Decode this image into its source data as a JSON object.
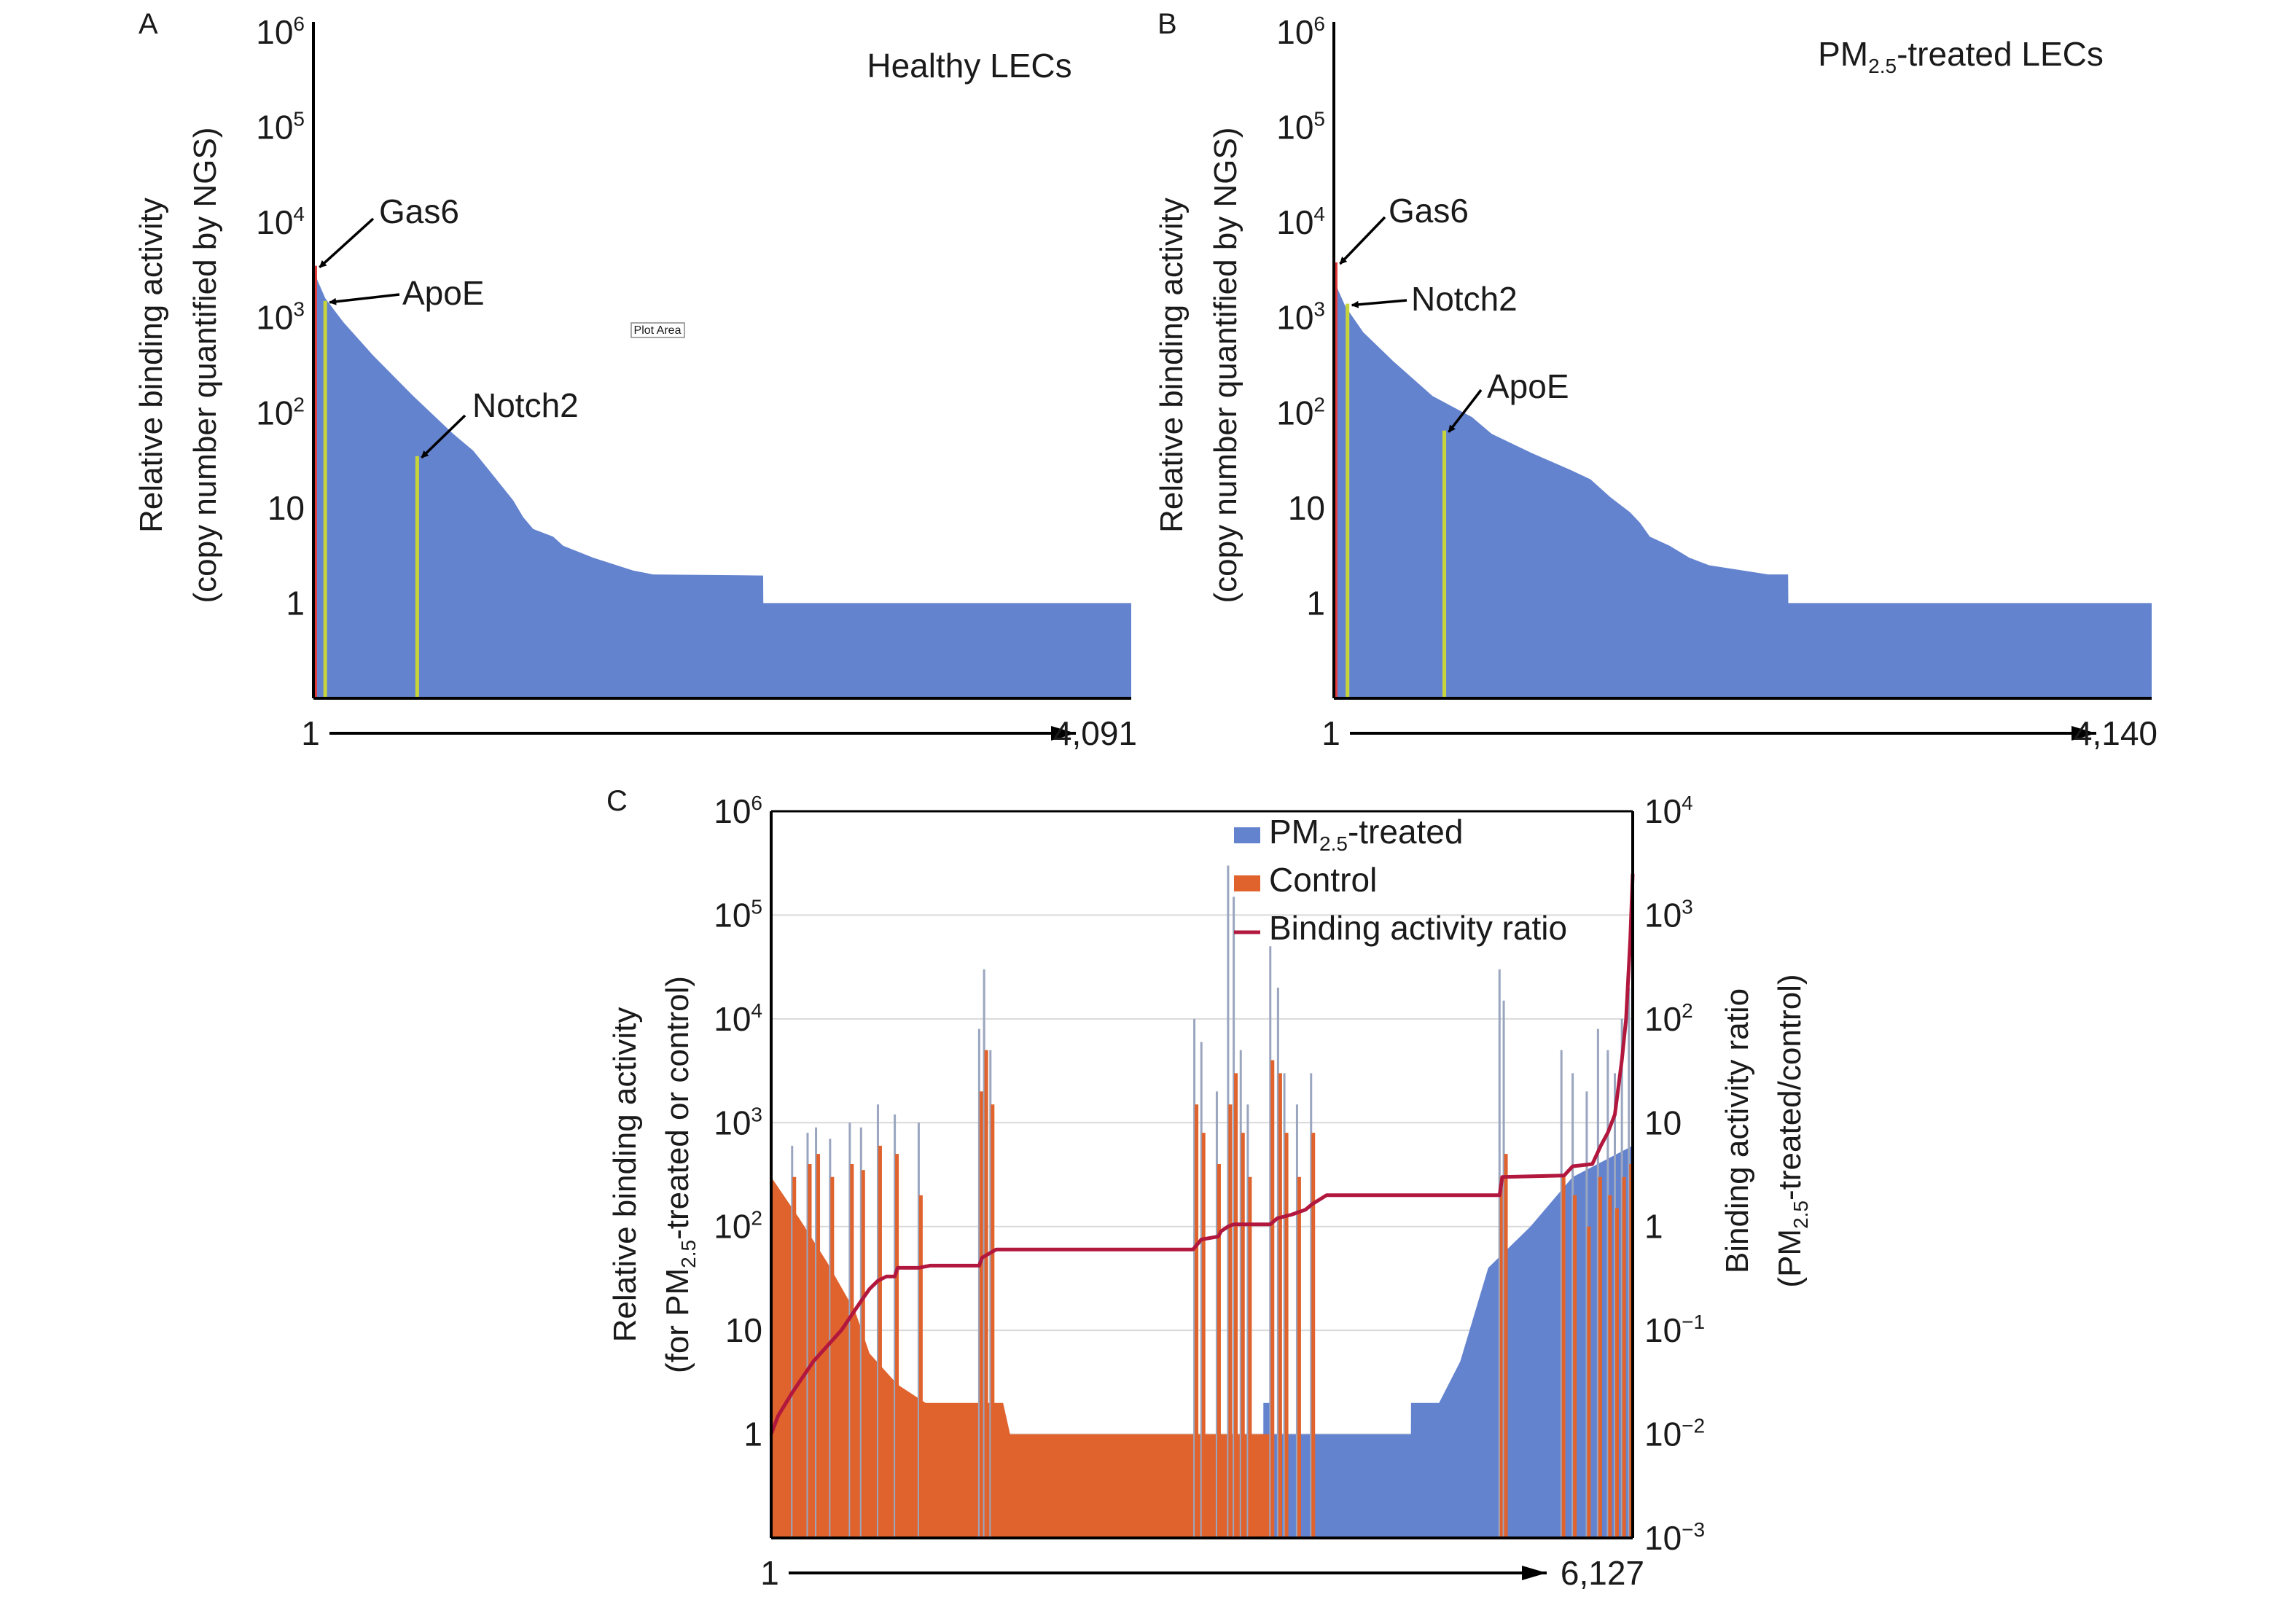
{
  "colors": {
    "pm25": "#6483cf",
    "control": "#e0622d",
    "ratio": "#b2173d",
    "gas6": "#e23b3b",
    "marker": "#c8d53a",
    "grid": "#d9d9d9",
    "axis": "#000000"
  },
  "chart_data": [
    {
      "panel": "A",
      "type": "bar",
      "title": "Healthy LECs",
      "ylabel_line1": "Relative binding activity",
      "ylabel_line2": "(copy number quantified by NGS)",
      "yscale": "log",
      "ylim": [
        0.1,
        1000000
      ],
      "yticks": [
        {
          "v": 1000000,
          "base": "10",
          "exp": "6"
        },
        {
          "v": 100000,
          "base": "10",
          "exp": "5"
        },
        {
          "v": 10000,
          "base": "10",
          "exp": "4"
        },
        {
          "v": 1000,
          "base": "10",
          "exp": "3"
        },
        {
          "v": 100,
          "base": "10",
          "exp": "2"
        },
        {
          "v": 10,
          "base": "10",
          "exp": ""
        },
        {
          "v": 1,
          "base": "1",
          "exp": ""
        }
      ],
      "x_start_label": "1",
      "x_end_label": "4,091",
      "xlim": [
        1,
        4091
      ],
      "grid": false,
      "profile": [
        [
          1,
          4000
        ],
        [
          20,
          2500
        ],
        [
          60,
          1600
        ],
        [
          150,
          900
        ],
        [
          300,
          400
        ],
        [
          500,
          150
        ],
        [
          700,
          60
        ],
        [
          800,
          40
        ],
        [
          900,
          22
        ],
        [
          1000,
          12
        ],
        [
          1050,
          8
        ],
        [
          1100,
          6
        ],
        [
          1200,
          5
        ],
        [
          1250,
          4
        ],
        [
          1400,
          3
        ],
        [
          1600,
          2.2
        ],
        [
          1700,
          2
        ],
        [
          2250,
          1.95
        ],
        [
          2251,
          1
        ],
        [
          4091,
          1
        ]
      ],
      "markers": [
        {
          "label": "Gas6",
          "x": 10,
          "y": 3500,
          "color": "gas6"
        },
        {
          "label": "ApoE",
          "x": 60,
          "y": 1500,
          "color": "marker"
        },
        {
          "label": "Notch2",
          "x": 520,
          "y": 35,
          "color": "marker"
        }
      ],
      "plot_area_label": "Plot Area"
    },
    {
      "panel": "B",
      "type": "bar",
      "title_main": "PM",
      "title_sub": "2.5",
      "title_rest": "-treated LECs",
      "ylabel_line1": "Relative binding activity",
      "ylabel_line2": "(copy number quantified by NGS)",
      "yscale": "log",
      "ylim": [
        0.1,
        1000000
      ],
      "yticks": [
        {
          "v": 1000000,
          "base": "10",
          "exp": "6"
        },
        {
          "v": 100000,
          "base": "10",
          "exp": "5"
        },
        {
          "v": 10000,
          "base": "10",
          "exp": "4"
        },
        {
          "v": 1000,
          "base": "10",
          "exp": "3"
        },
        {
          "v": 100,
          "base": "10",
          "exp": "2"
        },
        {
          "v": 10,
          "base": "10",
          "exp": ""
        },
        {
          "v": 1,
          "base": "1",
          "exp": ""
        }
      ],
      "x_start_label": "1",
      "x_end_label": "4,140",
      "xlim": [
        1,
        4140
      ],
      "grid": false,
      "profile": [
        [
          1,
          4000
        ],
        [
          20,
          2000
        ],
        [
          60,
          1300
        ],
        [
          150,
          700
        ],
        [
          300,
          350
        ],
        [
          500,
          150
        ],
        [
          700,
          90
        ],
        [
          800,
          60
        ],
        [
          1000,
          38
        ],
        [
          1200,
          25
        ],
        [
          1300,
          20
        ],
        [
          1400,
          13
        ],
        [
          1500,
          9
        ],
        [
          1550,
          7
        ],
        [
          1600,
          5
        ],
        [
          1700,
          4
        ],
        [
          1800,
          3
        ],
        [
          1900,
          2.5
        ],
        [
          2200,
          2
        ],
        [
          2300,
          2
        ],
        [
          2301,
          1
        ],
        [
          4140,
          1
        ]
      ],
      "markers": [
        {
          "label": "Gas6",
          "x": 10,
          "y": 3800,
          "color": "gas6"
        },
        {
          "label": "Notch2",
          "x": 70,
          "y": 1400,
          "color": "marker"
        },
        {
          "label": "ApoE",
          "x": 560,
          "y": 65,
          "color": "marker"
        }
      ]
    },
    {
      "panel": "C",
      "type": "bar",
      "ylabel_line1": "Relative binding activity",
      "ylabel_line2_pre": "(for PM",
      "ylabel_line2_sub": "2.5",
      "ylabel_line2_post": "-treated or control)",
      "y2label_line1": "Binding activity ratio",
      "y2label_line2_pre": "(PM",
      "y2label_line2_sub": "2.5",
      "y2label_line2_post": "-treated/control)",
      "yscale": "log",
      "ylim": [
        0.1,
        1000000
      ],
      "y2scale": "log",
      "y2lim": [
        0.001,
        10000
      ],
      "yticks": [
        {
          "v": 1000000,
          "base": "10",
          "exp": "6"
        },
        {
          "v": 100000,
          "base": "10",
          "exp": "5"
        },
        {
          "v": 10000,
          "base": "10",
          "exp": "4"
        },
        {
          "v": 1000,
          "base": "10",
          "exp": "3"
        },
        {
          "v": 100,
          "base": "10",
          "exp": "2"
        },
        {
          "v": 10,
          "base": "10",
          "exp": ""
        },
        {
          "v": 1,
          "base": "1",
          "exp": ""
        }
      ],
      "y2ticks": [
        {
          "v": 10000,
          "base": "10",
          "exp": "4"
        },
        {
          "v": 1000,
          "base": "10",
          "exp": "3"
        },
        {
          "v": 100,
          "base": "10",
          "exp": "2"
        },
        {
          "v": 10,
          "base": "10",
          "exp": ""
        },
        {
          "v": 1,
          "base": "1",
          "exp": ""
        },
        {
          "v": 0.1,
          "base": "10",
          "exp": "−1"
        },
        {
          "v": 0.01,
          "base": "10",
          "exp": "−2"
        },
        {
          "v": 0.001,
          "base": "10",
          "exp": "−3"
        }
      ],
      "x_start_label": "1",
      "x_end_label": "6,127",
      "xlim": [
        1,
        6127
      ],
      "grid": true,
      "legend": [
        {
          "key": "pm25",
          "pre": "PM",
          "sub": "2.5",
          "post": "-treated",
          "kind": "box"
        },
        {
          "key": "control",
          "pre": "Control",
          "sub": "",
          "post": "",
          "kind": "box"
        },
        {
          "key": "ratio",
          "pre": "Binding activity ratio",
          "sub": "",
          "post": "",
          "kind": "line"
        }
      ],
      "legend_position": "top-right",
      "control_profile": [
        [
          1,
          300
        ],
        [
          200,
          120
        ],
        [
          400,
          45
        ],
        [
          600,
          15
        ],
        [
          700,
          6
        ],
        [
          900,
          3
        ],
        [
          1100,
          2
        ],
        [
          1650,
          2
        ],
        [
          1700,
          1
        ],
        [
          3570,
          1
        ],
        [
          3571,
          0.1
        ],
        [
          6127,
          0.1
        ]
      ],
      "pm25_profile": [
        [
          1,
          0.1
        ],
        [
          3500,
          0.1
        ],
        [
          3501,
          2
        ],
        [
          3570,
          2
        ],
        [
          3571,
          1
        ],
        [
          4550,
          1
        ],
        [
          4551,
          2
        ],
        [
          4750,
          2
        ],
        [
          4900,
          5
        ],
        [
          5100,
          40
        ],
        [
          5400,
          100
        ],
        [
          5700,
          300
        ],
        [
          6127,
          600
        ]
      ],
      "spikes": [
        {
          "x": 150,
          "pm": 600,
          "ctrl": 300
        },
        {
          "x": 260,
          "pm": 800,
          "ctrl": 400
        },
        {
          "x": 320,
          "pm": 900,
          "ctrl": 500
        },
        {
          "x": 420,
          "pm": 700,
          "ctrl": 300
        },
        {
          "x": 560,
          "pm": 1000,
          "ctrl": 400
        },
        {
          "x": 640,
          "pm": 900,
          "ctrl": 350
        },
        {
          "x": 760,
          "pm": 1500,
          "ctrl": 600
        },
        {
          "x": 880,
          "pm": 1200,
          "ctrl": 500
        },
        {
          "x": 1050,
          "pm": 1000,
          "ctrl": 200
        },
        {
          "x": 1480,
          "pm": 8000,
          "ctrl": 2000
        },
        {
          "x": 1515,
          "pm": 30000,
          "ctrl": 5000
        },
        {
          "x": 1560,
          "pm": 5000,
          "ctrl": 1500
        },
        {
          "x": 3010,
          "pm": 10000,
          "ctrl": 1500
        },
        {
          "x": 3060,
          "pm": 6000,
          "ctrl": 800
        },
        {
          "x": 3170,
          "pm": 2000,
          "ctrl": 400
        },
        {
          "x": 3250,
          "pm": 300000,
          "ctrl": 1500
        },
        {
          "x": 3290,
          "pm": 150000,
          "ctrl": 3000
        },
        {
          "x": 3340,
          "pm": 5000,
          "ctrl": 800
        },
        {
          "x": 3390,
          "pm": 1500,
          "ctrl": 300
        },
        {
          "x": 3550,
          "pm": 50000,
          "ctrl": 4000
        },
        {
          "x": 3605,
          "pm": 20000,
          "ctrl": 3000
        },
        {
          "x": 3650,
          "pm": 3000,
          "ctrl": 800
        },
        {
          "x": 3740,
          "pm": 1500,
          "ctrl": 300
        },
        {
          "x": 3840,
          "pm": 3000,
          "ctrl": 800
        },
        {
          "x": 5180,
          "pm": 30000,
          "ctrl": 300
        },
        {
          "x": 5210,
          "pm": 15000,
          "ctrl": 500
        },
        {
          "x": 5620,
          "pm": 5000,
          "ctrl": 300
        },
        {
          "x": 5700,
          "pm": 3000,
          "ctrl": 200
        },
        {
          "x": 5800,
          "pm": 2000,
          "ctrl": 100
        },
        {
          "x": 5880,
          "pm": 8000,
          "ctrl": 300
        },
        {
          "x": 5950,
          "pm": 5000,
          "ctrl": 200
        },
        {
          "x": 6000,
          "pm": 3000,
          "ctrl": 150
        },
        {
          "x": 6050,
          "pm": 10000,
          "ctrl": 300
        },
        {
          "x": 6100,
          "pm": 20000,
          "ctrl": 400
        }
      ],
      "ratio_line": [
        [
          1,
          0.01
        ],
        [
          50,
          0.015
        ],
        [
          150,
          0.025
        ],
        [
          300,
          0.05
        ],
        [
          500,
          0.1
        ],
        [
          650,
          0.2
        ],
        [
          700,
          0.25
        ],
        [
          760,
          0.3
        ],
        [
          820,
          0.33
        ],
        [
          880,
          0.33
        ],
        [
          900,
          0.4
        ],
        [
          1050,
          0.4
        ],
        [
          1130,
          0.42
        ],
        [
          1480,
          0.42
        ],
        [
          1500,
          0.5
        ],
        [
          1600,
          0.6
        ],
        [
          3000,
          0.6
        ],
        [
          3060,
          0.75
        ],
        [
          3180,
          0.8
        ],
        [
          3200,
          0.9
        ],
        [
          3250,
          1.0
        ],
        [
          3290,
          1.05
        ],
        [
          3550,
          1.05
        ],
        [
          3600,
          1.2
        ],
        [
          3700,
          1.3
        ],
        [
          3800,
          1.45
        ],
        [
          3850,
          1.65
        ],
        [
          3950,
          2
        ],
        [
          5180,
          2
        ],
        [
          5200,
          3
        ],
        [
          5640,
          3.1
        ],
        [
          5700,
          3.8
        ],
        [
          5840,
          4
        ],
        [
          5900,
          6
        ],
        [
          5950,
          8
        ],
        [
          6000,
          12
        ],
        [
          6050,
          40
        ],
        [
          6080,
          100
        ],
        [
          6110,
          600
        ],
        [
          6127,
          2500
        ]
      ]
    }
  ]
}
